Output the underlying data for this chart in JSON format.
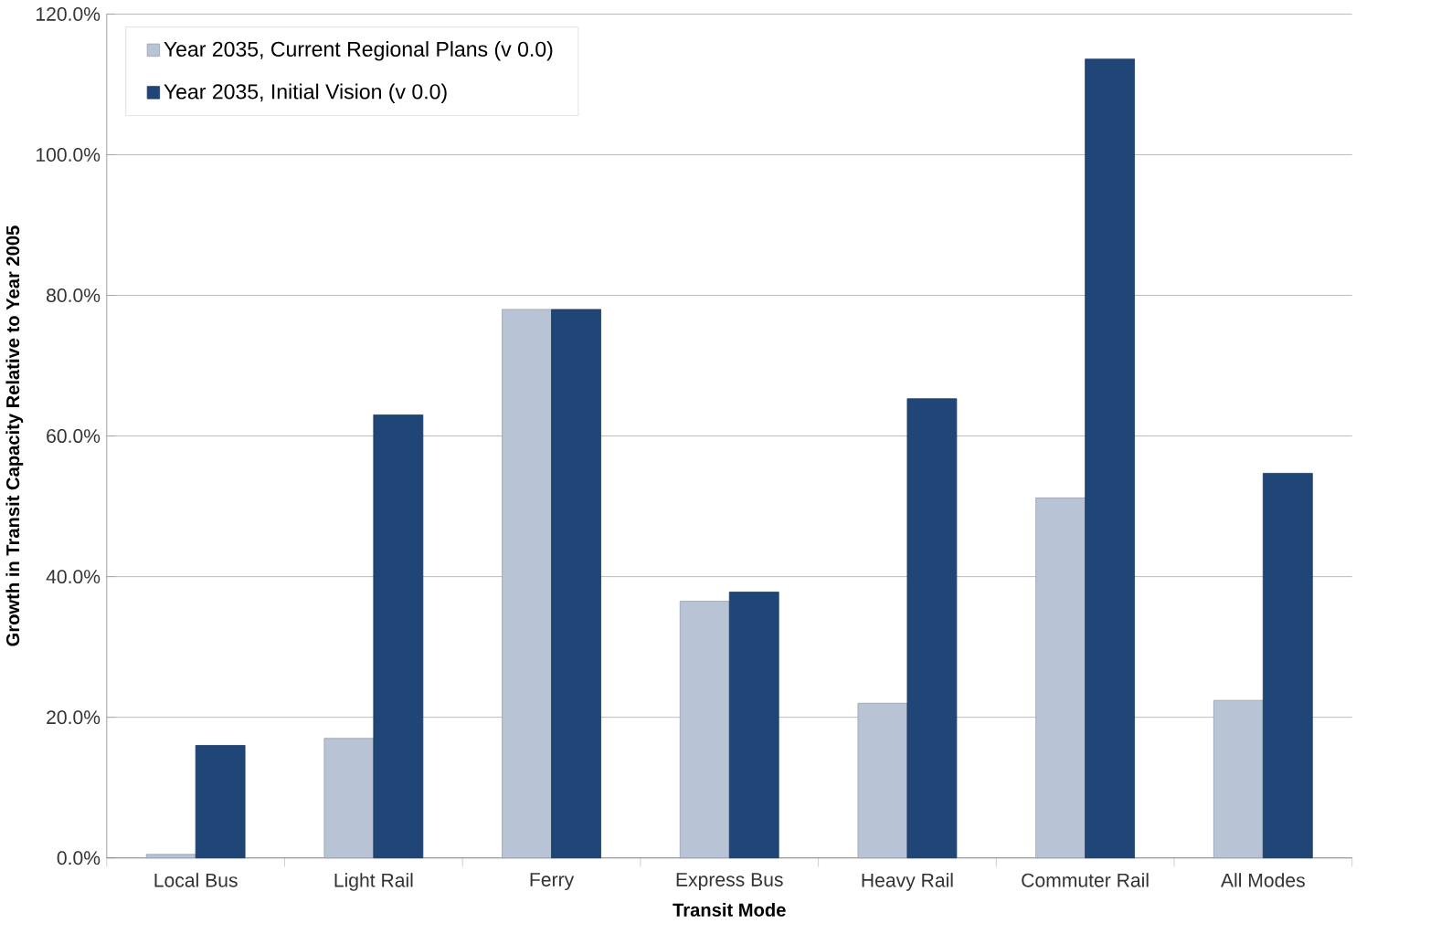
{
  "chart_data": {
    "type": "bar",
    "xlabel": "Transit Mode",
    "ylabel": "Growth in Transit Capacity Relative to Year 2005",
    "categories": [
      "Local Bus",
      "Light Rail",
      "Ferry",
      "Express Bus",
      "Heavy Rail",
      "Commuter Rail",
      "All Modes"
    ],
    "series": [
      {
        "name": "Year 2035, Current Regional Plans (v 0.0)",
        "color": "#b8c4d6",
        "values": [
          0.5,
          17,
          78,
          36.5,
          22,
          51.2,
          22.4
        ]
      },
      {
        "name": "Year 2035, Initial Vision (v 0.0)",
        "color": "#1f4677",
        "values": [
          16,
          63,
          78,
          37.8,
          65.3,
          113.6,
          54.7
        ]
      }
    ],
    "ylim": [
      0,
      120
    ],
    "yticks": [
      {
        "value": 0,
        "label": "0.0%"
      },
      {
        "value": 20,
        "label": "20.0%"
      },
      {
        "value": 40,
        "label": "40.0%"
      },
      {
        "value": 60,
        "label": "60.0%"
      },
      {
        "value": 80,
        "label": "80.0%"
      },
      {
        "value": 100,
        "label": "100.0%"
      },
      {
        "value": 120,
        "label": "120.0%"
      }
    ],
    "grid": "y",
    "legend": "top left"
  }
}
